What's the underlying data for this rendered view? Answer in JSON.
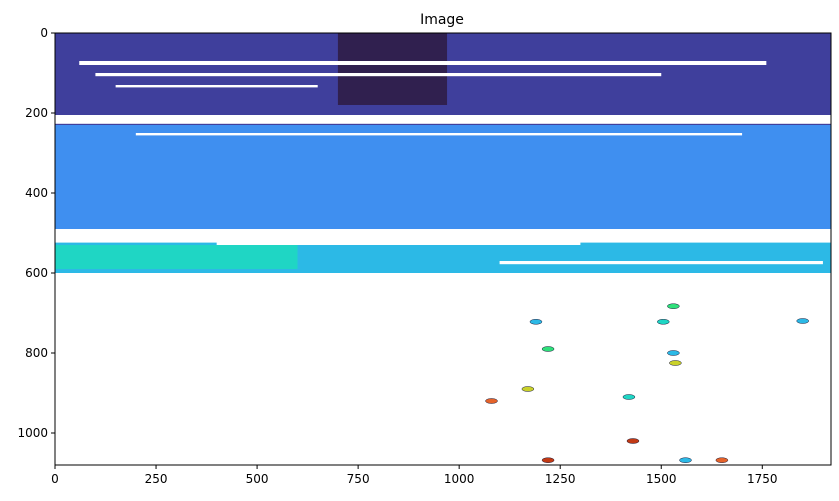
{
  "chart_data": {
    "type": "heatmap",
    "title": "Image",
    "xlabel": "",
    "ylabel": "",
    "xlim": [
      0,
      1920
    ],
    "ylim": [
      1080,
      0
    ],
    "x_ticks": [
      0,
      250,
      500,
      750,
      1000,
      1250,
      1500,
      1750
    ],
    "y_ticks": [
      0,
      200,
      400,
      600,
      800,
      1000
    ],
    "grid": false,
    "colormap": "turbo",
    "background": "#ffffff",
    "colors": {
      "deep": "#30204f",
      "indigo": "#3f3f9c",
      "blue": "#4a64d8",
      "azure": "#3f8ff0",
      "cyan": "#2cb9e6",
      "teal": "#1fd6c4",
      "green": "#2fe07a",
      "yellow": "#c9d12a",
      "orange": "#e5632a",
      "red": "#c23a14"
    },
    "regions": [
      {
        "name": "upper-band",
        "x": [
          0,
          1920
        ],
        "y": [
          0,
          230
        ],
        "color": "indigo"
      },
      {
        "name": "dark-sky-patch",
        "x": [
          700,
          970
        ],
        "y": [
          0,
          180
        ],
        "color": "deep"
      },
      {
        "name": "middle-band",
        "x": [
          0,
          1920
        ],
        "y": [
          230,
          490
        ],
        "color": "azure"
      },
      {
        "name": "lower-band",
        "x": [
          0,
          1920
        ],
        "y": [
          490,
          600
        ],
        "color": "cyan"
      },
      {
        "name": "teal-patch",
        "x": [
          0,
          600
        ],
        "y": [
          530,
          590
        ],
        "color": "teal"
      }
    ],
    "blobs": [
      {
        "x": 1530,
        "y": 683,
        "color": "green"
      },
      {
        "x": 1190,
        "y": 722,
        "color": "cyan"
      },
      {
        "x": 1505,
        "y": 722,
        "color": "teal"
      },
      {
        "x": 1850,
        "y": 720,
        "color": "cyan"
      },
      {
        "x": 1530,
        "y": 800,
        "color": "cyan"
      },
      {
        "x": 1535,
        "y": 825,
        "color": "yellow"
      },
      {
        "x": 1220,
        "y": 790,
        "color": "green"
      },
      {
        "x": 1080,
        "y": 920,
        "color": "orange"
      },
      {
        "x": 1170,
        "y": 890,
        "color": "yellow"
      },
      {
        "x": 1420,
        "y": 910,
        "color": "teal"
      },
      {
        "x": 1430,
        "y": 1020,
        "color": "red"
      },
      {
        "x": 1220,
        "y": 1068,
        "color": "red"
      },
      {
        "x": 1650,
        "y": 1068,
        "color": "orange"
      },
      {
        "x": 1560,
        "y": 1068,
        "color": "cyan"
      }
    ]
  }
}
